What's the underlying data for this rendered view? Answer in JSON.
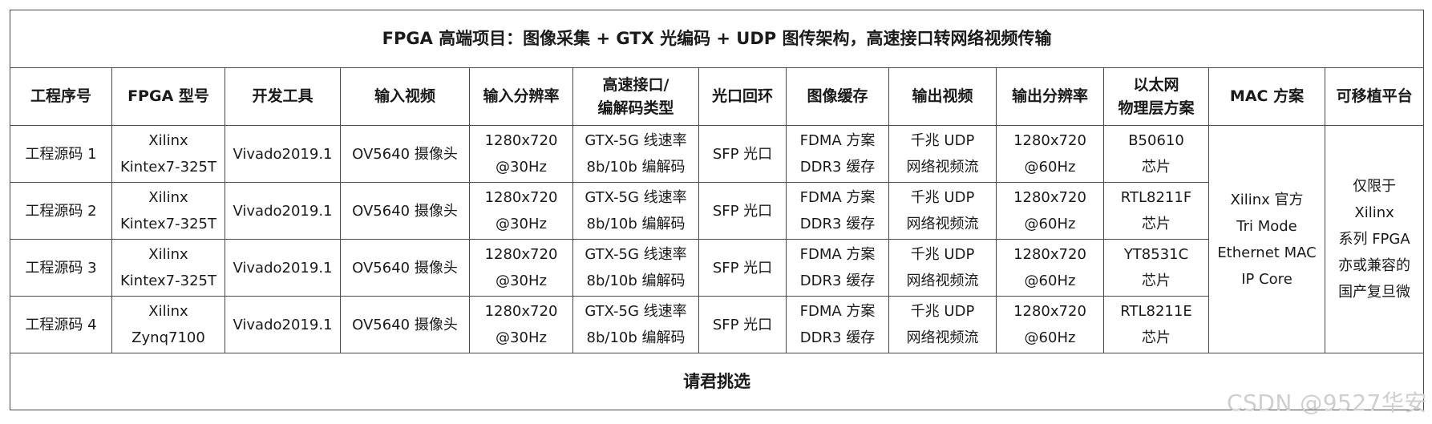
{
  "table": {
    "title": "FPGA 高端项目：图像采集 + GTX 光编码 + UDP 图传架构，高速接口转网络视频传输",
    "headers": [
      "工程序号",
      "FPGA 型号",
      "开发工具",
      "输入视频",
      "输入分辨率",
      "高速接口/\n编解码类型",
      "光口回环",
      "图像缓存",
      "输出视频",
      "输出分辨率",
      "以太网\n物理层方案",
      "MAC 方案",
      "可移植平台"
    ],
    "rows": [
      {
        "project": "工程源码 1",
        "fpga": "Xilinx\nKintex7-325T",
        "tool": "Vivado2019.1",
        "input_video": "OV5640 摄像头",
        "input_res": "1280x720\n@30Hz",
        "interface": "GTX-5G 线速率\n8b/10b 编解码",
        "loopback": "SFP 光口",
        "buffer": "FDMA 方案\nDDR3 缓存",
        "output_video": "千兆 UDP\n网络视频流",
        "output_res": "1280x720\n@60Hz",
        "phy": "B50610\n芯片"
      },
      {
        "project": "工程源码 2",
        "fpga": "Xilinx\nKintex7-325T",
        "tool": "Vivado2019.1",
        "input_video": "OV5640 摄像头",
        "input_res": "1280x720\n@30Hz",
        "interface": "GTX-5G 线速率\n8b/10b 编解码",
        "loopback": "SFP 光口",
        "buffer": "FDMA 方案\nDDR3 缓存",
        "output_video": "千兆 UDP\n网络视频流",
        "output_res": "1280x720\n@60Hz",
        "phy": "RTL8211F\n芯片"
      },
      {
        "project": "工程源码 3",
        "fpga": "Xilinx\nKintex7-325T",
        "tool": "Vivado2019.1",
        "input_video": "OV5640 摄像头",
        "input_res": "1280x720\n@30Hz",
        "interface": "GTX-5G 线速率\n8b/10b 编解码",
        "loopback": "SFP 光口",
        "buffer": "FDMA 方案\nDDR3 缓存",
        "output_video": "千兆 UDP\n网络视频流",
        "output_res": "1280x720\n@60Hz",
        "phy": "YT8531C\n芯片"
      },
      {
        "project": "工程源码 4",
        "fpga": "Xilinx\nZynq7100",
        "tool": "Vivado2019.1",
        "input_video": "OV5640 摄像头",
        "input_res": "1280x720\n@30Hz",
        "interface": "GTX-5G 线速率\n8b/10b 编解码",
        "loopback": "SFP 光口",
        "buffer": "FDMA 方案\nDDR3 缓存",
        "output_video": "千兆 UDP\n网络视频流",
        "output_res": "1280x720\n@60Hz",
        "phy": "RTL8211E\n芯片"
      }
    ],
    "mac_scheme": "Xilinx 官方\nTri Mode\nEthernet MAC\nIP Core",
    "platform": "仅限于\nXilinx\n系列 FPGA\n亦或兼容的\n国产复旦微",
    "footer": "请君挑选"
  },
  "watermark": "CSDN @9527华安"
}
